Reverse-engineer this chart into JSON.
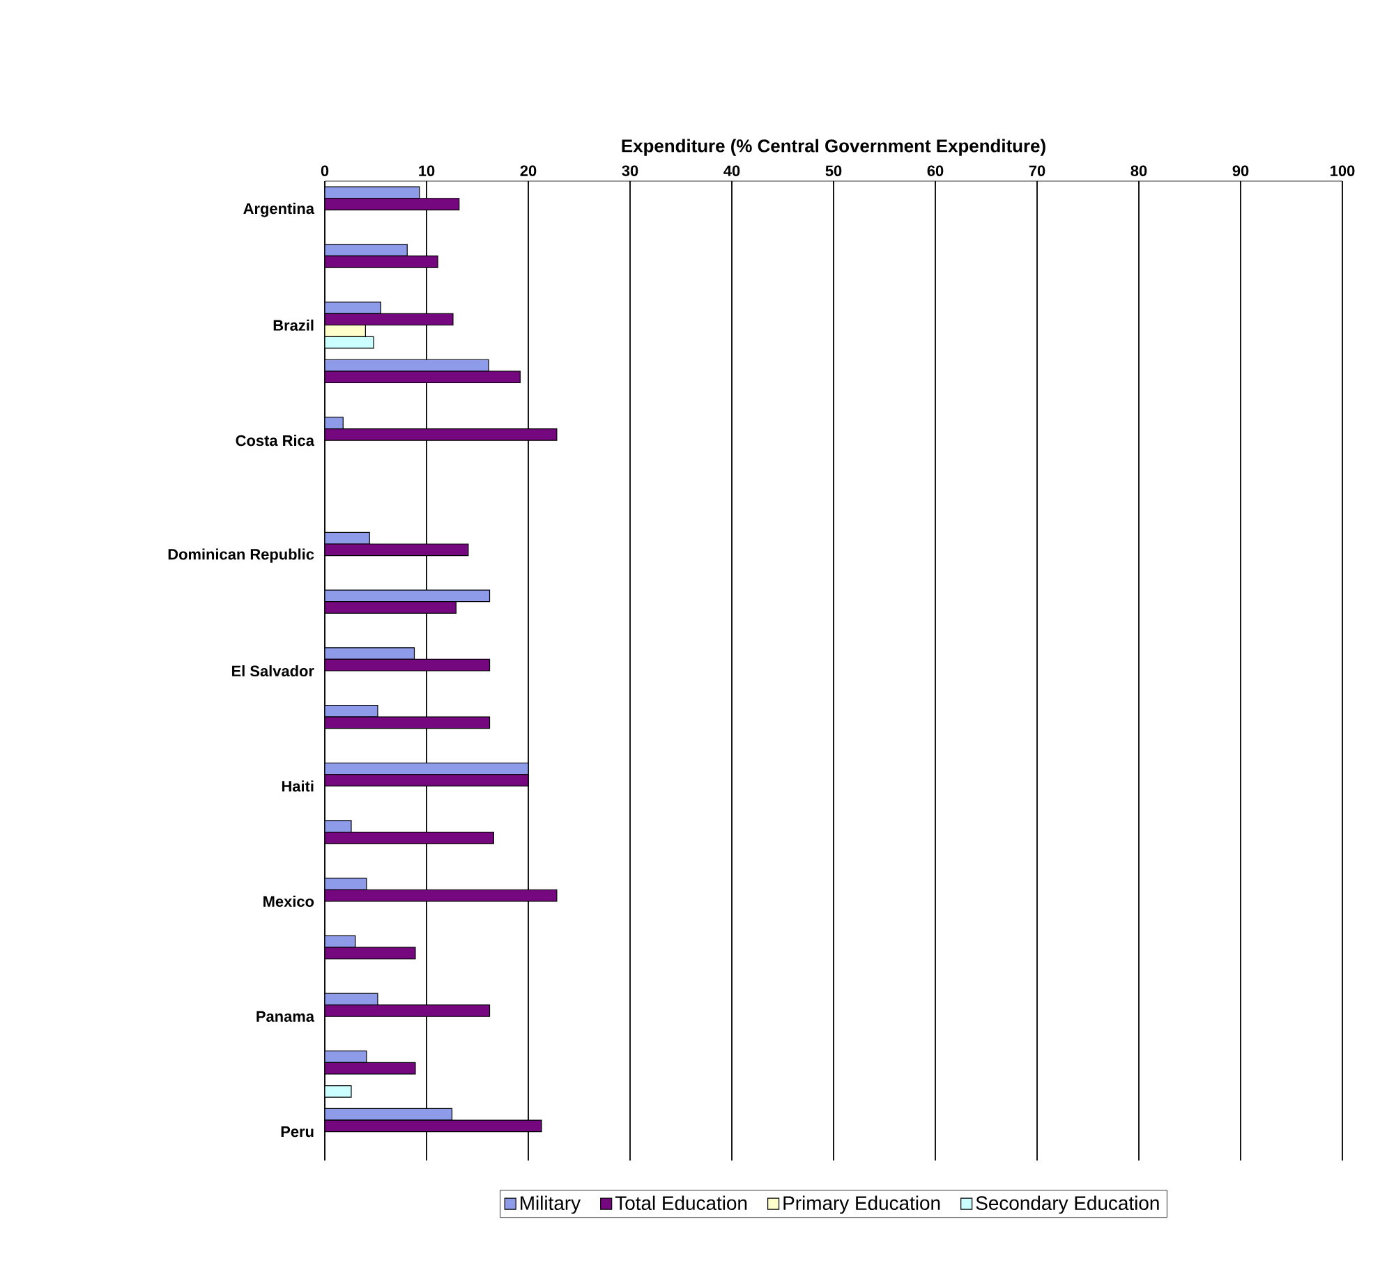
{
  "chart_data": {
    "type": "bar",
    "orientation": "horizontal",
    "xlabel": "Expenditure (% Central Government Expenditure)",
    "categories": [
      "Argentina",
      null,
      "Brazil",
      null,
      "Costa Rica",
      null,
      "Dominican Republic",
      null,
      "El Salvador",
      null,
      "Haiti",
      null,
      "Mexico",
      null,
      "Panama",
      null,
      "Peru"
    ],
    "series": [
      {
        "name": "Military",
        "color": "#8e9be8",
        "values": [
          9.3,
          8.1,
          5.5,
          16.1,
          1.8,
          null,
          4.4,
          16.2,
          8.8,
          5.2,
          20,
          2.6,
          4.1,
          3.0,
          5.2,
          4.1,
          12.5
        ]
      },
      {
        "name": "Total Education",
        "color": "#75087f",
        "values": [
          13.2,
          11.1,
          12.6,
          19.2,
          22.8,
          null,
          14.1,
          12.9,
          16.2,
          16.2,
          20,
          16.6,
          22.8,
          8.9,
          16.2,
          8.9,
          21.3
        ]
      },
      {
        "name": "Primary Education",
        "color": "#ffffcc",
        "values": [
          null,
          null,
          4.0,
          null,
          null,
          null,
          null,
          null,
          null,
          null,
          null,
          null,
          null,
          null,
          null,
          null,
          null
        ]
      },
      {
        "name": "Secondary Education",
        "color": "#ccffff",
        "values": [
          null,
          null,
          4.8,
          null,
          null,
          null,
          null,
          null,
          null,
          null,
          null,
          null,
          null,
          null,
          null,
          2.6,
          null
        ]
      }
    ],
    "xlim": [
      0,
      100
    ],
    "xticks": [
      0,
      10,
      20,
      30,
      40,
      50,
      60,
      70,
      80,
      90,
      100
    ],
    "grid": "x",
    "legend": "bottom"
  }
}
